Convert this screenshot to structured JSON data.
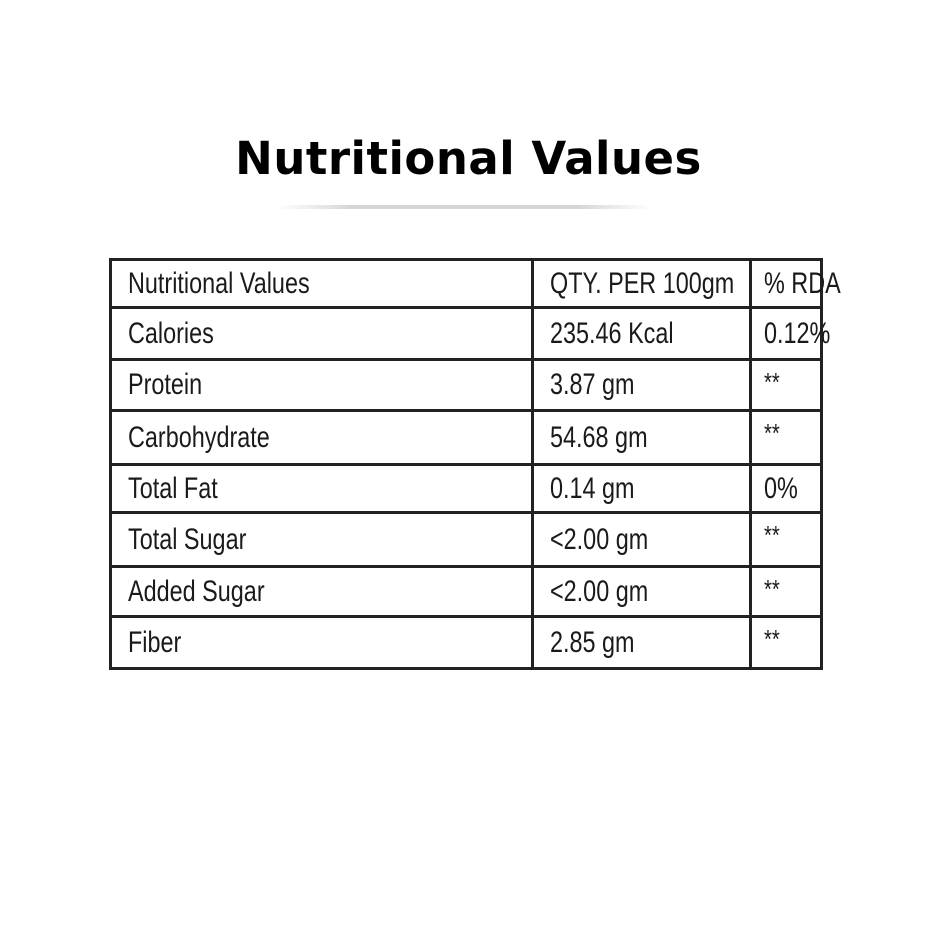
{
  "title": "Nutritional Values",
  "table": {
    "headers": [
      "Nutritional Values",
      "QTY. PER 100gm",
      "% RDA"
    ],
    "rows": [
      [
        "Calories",
        "235.46 Kcal",
        "0.12%"
      ],
      [
        "Protein",
        "3.87 gm",
        "**"
      ],
      [
        "Carbohydrate",
        "54.68 gm",
        "**"
      ],
      [
        "Total Fat",
        "0.14 gm",
        "0%"
      ],
      [
        "Total Sugar",
        "<2.00 gm",
        "**"
      ],
      [
        "Added Sugar",
        "<2.00 gm",
        "**"
      ],
      [
        "Fiber",
        "2.85 gm",
        "**"
      ]
    ]
  }
}
